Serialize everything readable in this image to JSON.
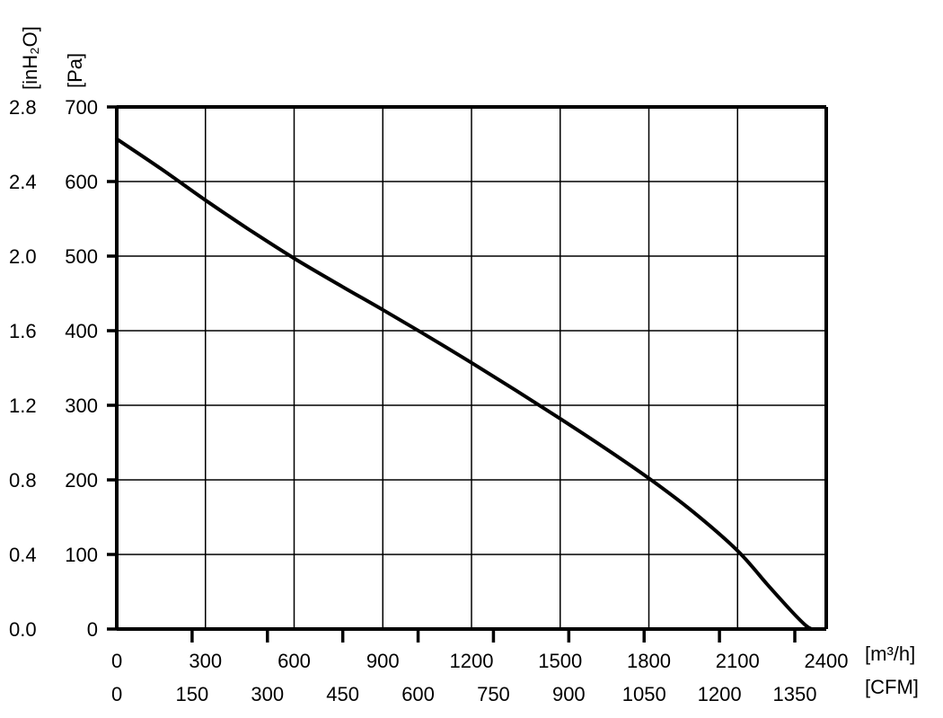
{
  "chart_data": {
    "type": "line",
    "title": "",
    "xlabel": "[m³/h]",
    "xlabel_secondary": "[CFM]",
    "ylabel": "[Pa]",
    "ylabel_secondary": "[inH₂O]",
    "xlim": [
      0,
      2400
    ],
    "ylim": [
      0,
      700
    ],
    "grid": true,
    "x_ticks": [
      "0",
      "300",
      "600",
      "900",
      "1200",
      "1500",
      "1800",
      "2100",
      "2400"
    ],
    "x_ticks_secondary": [
      "0",
      "150",
      "300",
      "450",
      "600",
      "750",
      "900",
      "1050",
      "1200",
      "1350"
    ],
    "y_ticks": [
      "0",
      "100",
      "200",
      "300",
      "400",
      "500",
      "600",
      "700"
    ],
    "y_ticks_secondary": [
      "0.0",
      "0.4",
      "0.8",
      "1.2",
      "1.6",
      "2.0",
      "2.4",
      "2.8"
    ],
    "series": [
      {
        "name": "",
        "x": [
          0,
          150,
          300,
          450,
          600,
          750,
          900,
          1050,
          1200,
          1350,
          1500,
          1650,
          1800,
          1950,
          2100,
          2200,
          2280,
          2330,
          2350
        ],
        "y": [
          657,
          617,
          575,
          535,
          497,
          462,
          428,
          393,
          357,
          320,
          282,
          243,
          202,
          157,
          105,
          60,
          25,
          5,
          0
        ]
      }
    ]
  }
}
